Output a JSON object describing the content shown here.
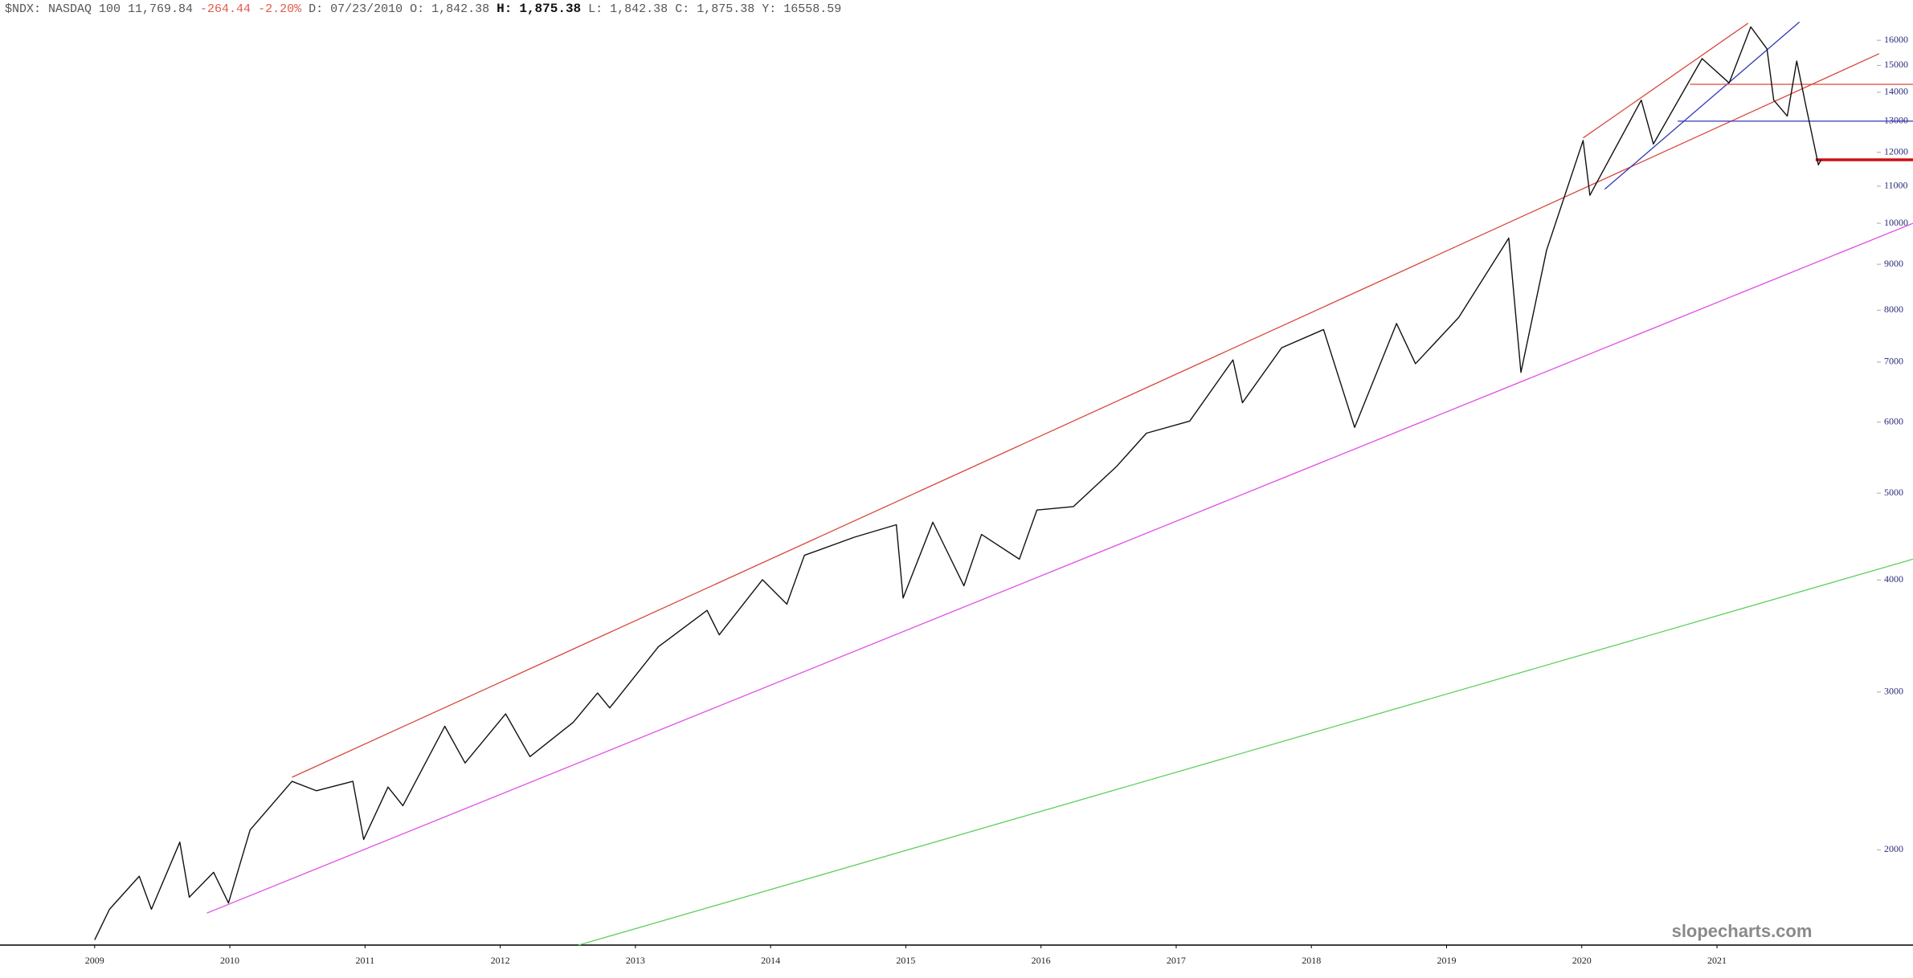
{
  "header": {
    "symbol": "$NDX:",
    "name": "NASDAQ 100",
    "last": "11,769.84",
    "change": "-264.44",
    "change_pct": "-2.20%",
    "fields": [
      {
        "label": "D:",
        "value": "07/23/2010"
      },
      {
        "label": "O:",
        "value": "1,842.38"
      },
      {
        "label": "H:",
        "value": "1,875.38"
      },
      {
        "label": "L:",
        "value": "1,842.38"
      },
      {
        "label": "C:",
        "value": "1,875.38"
      },
      {
        "label": "Y:",
        "value": "16558.59"
      }
    ]
  },
  "chart_data": {
    "type": "line",
    "log_scale": true,
    "color": "#111111",
    "watermark": "slopecharts.com",
    "x": [
      2009.0,
      2009.11,
      2009.33,
      2009.42,
      2009.63,
      2009.7,
      2009.88,
      2009.99,
      2010.15,
      2010.46,
      2010.64,
      2010.91,
      2010.99,
      2011.17,
      2011.28,
      2011.59,
      2011.74,
      2012.04,
      2012.22,
      2012.54,
      2012.72,
      2012.81,
      2013.17,
      2013.53,
      2013.62,
      2013.94,
      2014.12,
      2014.25,
      2014.62,
      2014.93,
      2014.98,
      2015.2,
      2015.43,
      2015.56,
      2015.84,
      2015.97,
      2016.24,
      2016.56,
      2016.78,
      2017.1,
      2017.42,
      2017.49,
      2017.78,
      2018.09,
      2018.32,
      2018.63,
      2018.77,
      2019.09,
      2019.46,
      2019.55,
      2019.74,
      2020.01,
      2020.06,
      2020.44,
      2020.53,
      2020.89,
      2021.09,
      2021.25,
      2021.37,
      2021.42,
      2021.52,
      2021.59,
      2021.66,
      2021.75,
      2021.77
    ],
    "values": [
      1587,
      1717,
      1869,
      1717,
      2040,
      1771,
      1888,
      1745,
      2105,
      2385,
      2328,
      2385,
      2054,
      2350,
      2240,
      2747,
      2500,
      2836,
      2541,
      2775,
      2992,
      2880,
      3370,
      3700,
      3475,
      4003,
      3760,
      4262,
      4465,
      4610,
      3819,
      4640,
      3941,
      4497,
      4220,
      4788,
      4830,
      5357,
      5832,
      6016,
      7040,
      6307,
      7263,
      7611,
      5920,
      7730,
      6972,
      7853,
      9628,
      6818,
      9335,
      12370,
      10746,
      13720,
      12260,
      15265,
      14340,
      16560,
      15650,
      13720,
      13170,
      15170,
      13470,
      11620,
      11770
    ],
    "xlim": [
      2008.3,
      2022.45
    ],
    "xticks": [
      2009,
      2010,
      2011,
      2012,
      2013,
      2014,
      2015,
      2016,
      2017,
      2018,
      2019,
      2020,
      2021
    ],
    "ylim": [
      1566,
      17745
    ],
    "yticks": [
      2000,
      3000,
      4000,
      5000,
      6000,
      7000,
      8000,
      9000,
      10000,
      11000,
      12000,
      13000,
      14000,
      15000,
      16000
    ],
    "lines": [
      {
        "color": "#d9493e",
        "linewidth": 1.3,
        "x": [
          2010.46,
          2022.2
        ],
        "y": [
          2410,
          15460
        ]
      },
      {
        "color": "#d9493e",
        "linewidth": 1.3,
        "x": [
          2020.01,
          2021.23
        ],
        "y": [
          12450,
          16718
        ]
      },
      {
        "color": "#3339b8",
        "linewidth": 1.3,
        "x": [
          2020.17,
          2021.61
        ],
        "y": [
          10915,
          16770
        ]
      },
      {
        "color": "#3339b8",
        "linewidth": 1.3,
        "x": [
          2020.71,
          2022.45
        ],
        "y": [
          13000,
          13000
        ]
      },
      {
        "color": "#d9493e",
        "linewidth": 1.3,
        "x": [
          2020.8,
          2022.45
        ],
        "y": [
          14290,
          14290
        ]
      },
      {
        "color": "#cc1111",
        "linewidth": 3.5,
        "x": [
          2021.73,
          2022.45
        ],
        "y": [
          11770,
          11770
        ]
      },
      {
        "color": "#e04fe6",
        "linewidth": 1.3,
        "x": [
          2009.83,
          2022.45
        ],
        "y": [
          1700,
          10000
        ]
      },
      {
        "color": "#5ccf5c",
        "linewidth": 1.3,
        "x": [
          2012.58,
          2022.45
        ],
        "y": [
          1566,
          4220
        ]
      }
    ]
  }
}
